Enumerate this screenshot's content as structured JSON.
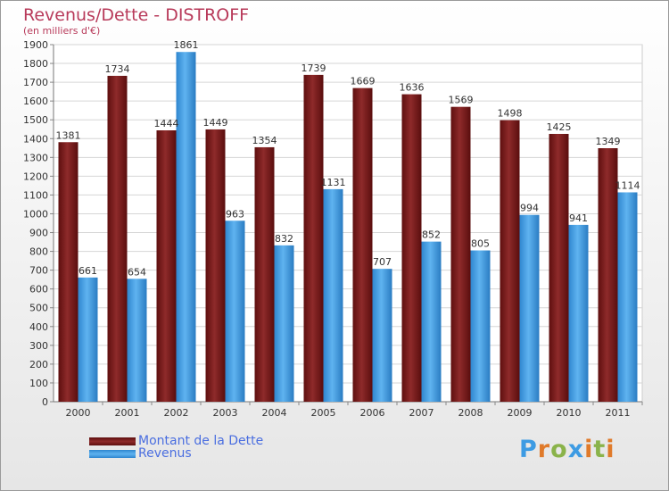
{
  "header": {
    "title": "Revenus/Dette - DISTROFF",
    "subtitle": "(en milliers d'€)"
  },
  "chart_data": {
    "type": "bar",
    "title": "Revenus/Dette - DISTROFF",
    "subtitle": "(en milliers d'€)",
    "categories": [
      "2000",
      "2001",
      "2002",
      "2003",
      "2004",
      "2005",
      "2006",
      "2007",
      "2008",
      "2009",
      "2010",
      "2011"
    ],
    "series": [
      {
        "name": "Montant de la Dette",
        "color": "#7b1c1c",
        "values": [
          1381,
          1734,
          1444,
          1449,
          1354,
          1739,
          1669,
          1636,
          1569,
          1498,
          1425,
          1349
        ]
      },
      {
        "name": "Revenus",
        "color": "#3d9be3",
        "values": [
          661,
          654,
          1861,
          963,
          832,
          1131,
          707,
          852,
          805,
          994,
          941,
          1114
        ]
      }
    ],
    "ylim": [
      0,
      1900
    ],
    "ytick_step": 100,
    "grid": true,
    "legend_position": "bottom-left",
    "data_labels": true
  },
  "legend": {
    "items": [
      {
        "label": "Montant de la Dette",
        "color": "#7b1c1c"
      },
      {
        "label": "Revenus",
        "color": "#3d9be3"
      }
    ]
  },
  "logo": {
    "text": "Proxiti",
    "colors": [
      "#3d9be3",
      "#e07a2a",
      "#8ab34a",
      "#3d9be3",
      "#e07a2a",
      "#8ab34a",
      "#e07a2a"
    ]
  }
}
